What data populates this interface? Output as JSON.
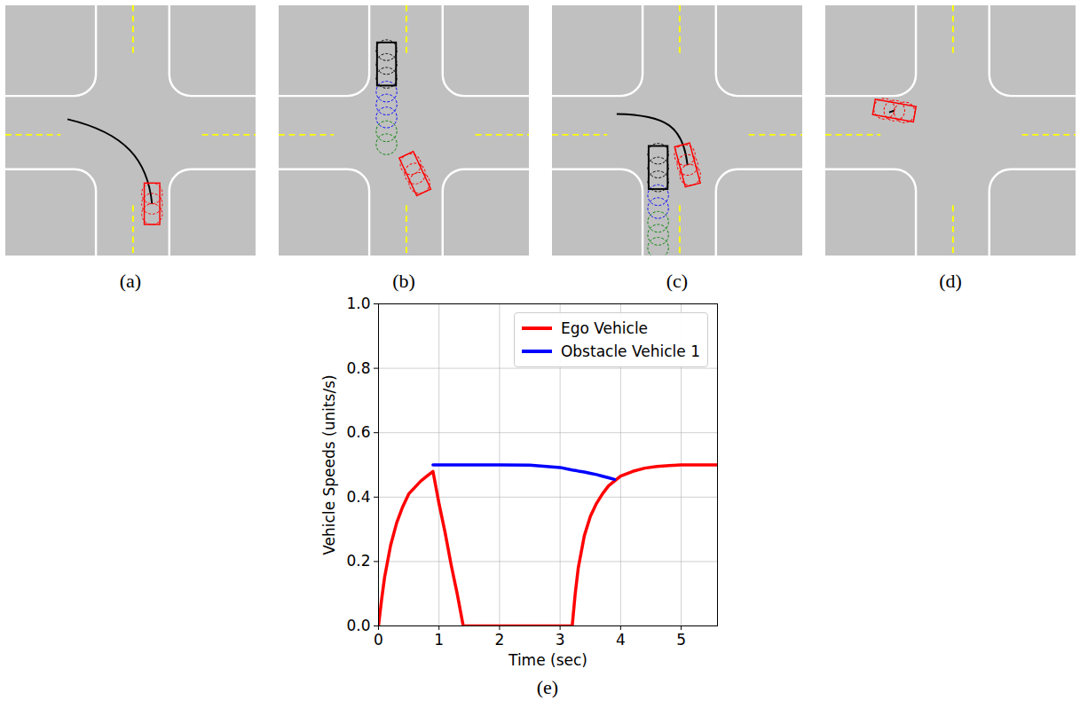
{
  "panels": [
    {
      "label": "(a)"
    },
    {
      "label": "(b)"
    },
    {
      "label": "(c)"
    },
    {
      "label": "(d)"
    }
  ],
  "chart_data": {
    "type": "line",
    "panel_label": "(e)",
    "x_label": "Time (sec)",
    "y_label": "Vehicle Speeds (units/s)",
    "x": [
      0,
      0.05,
      0.1,
      0.15,
      0.2,
      0.3,
      0.4,
      0.5,
      0.6,
      0.7,
      0.8,
      0.9,
      1.0,
      1.1,
      1.2,
      1.3,
      1.4,
      2.0,
      2.5,
      3.0,
      3.2,
      3.25,
      3.3,
      3.4,
      3.5,
      3.6,
      3.7,
      3.8,
      3.9,
      4.0,
      4.2,
      4.4,
      4.6,
      4.8,
      5.0,
      5.3,
      5.6
    ],
    "series": [
      {
        "name": "Ego Vehicle",
        "color": "#ff0000",
        "values": [
          0,
          0.08,
          0.15,
          0.2,
          0.25,
          0.32,
          0.37,
          0.41,
          0.43,
          0.45,
          0.465,
          0.48,
          0.38,
          0.29,
          0.19,
          0.1,
          0,
          0,
          0,
          0,
          0,
          0.1,
          0.18,
          0.28,
          0.34,
          0.38,
          0.41,
          0.435,
          0.45,
          0.465,
          0.48,
          0.49,
          0.495,
          0.498,
          0.5,
          0.5,
          0.5
        ]
      },
      {
        "name": "Obstacle Vehicle 1",
        "color": "#0000ff",
        "values": [
          null,
          null,
          null,
          null,
          null,
          null,
          null,
          null,
          null,
          null,
          null,
          0.5,
          0.5,
          0.5,
          0.5,
          0.5,
          0.5,
          0.5,
          0.499,
          0.492,
          0.484,
          0.483,
          0.481,
          0.478,
          0.474,
          0.47,
          0.465,
          0.46,
          0.455,
          null,
          null,
          null,
          null,
          null,
          null,
          null,
          null
        ]
      }
    ],
    "xlim": [
      0,
      5.6
    ],
    "ylim": [
      0,
      1
    ],
    "xticks": [
      0,
      1,
      2,
      3,
      4,
      5
    ],
    "yticks": [
      {
        "value": 0,
        "label": "0.0"
      },
      {
        "value": 0.2,
        "label": "0.2"
      },
      {
        "value": 0.4,
        "label": "0.4"
      },
      {
        "value": 0.6,
        "label": "0.6"
      },
      {
        "value": 0.8,
        "label": "0.8"
      },
      {
        "value": 1,
        "label": "1.0"
      }
    ],
    "grid": true,
    "legend": "upper right"
  }
}
